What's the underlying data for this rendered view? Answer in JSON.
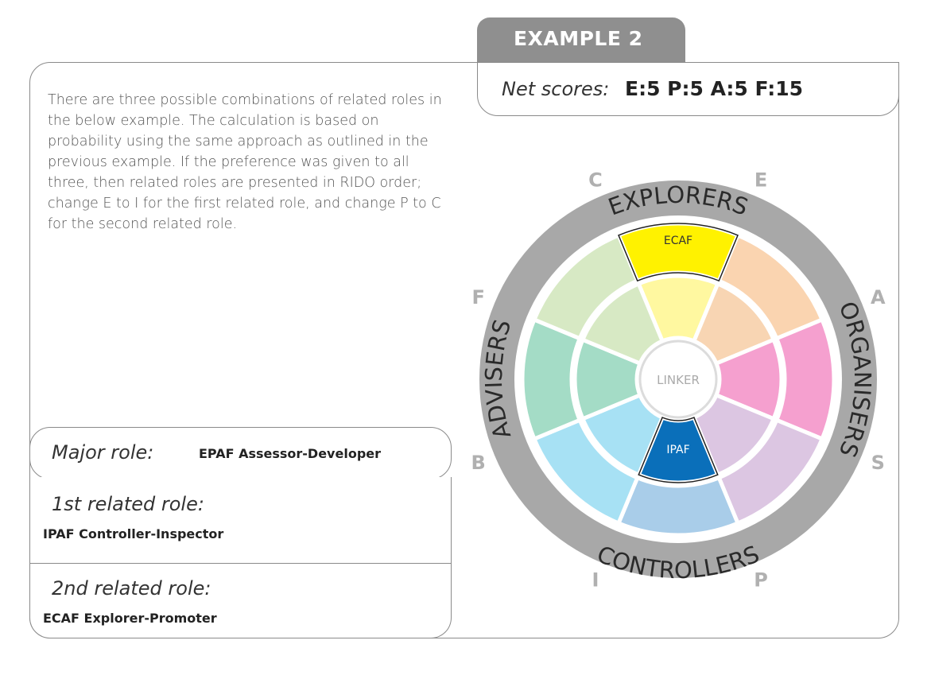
{
  "header": {
    "example_label": "EXAMPLE 2"
  },
  "net_scores": {
    "label": "Net scores:",
    "value": "E:5 P:5 A:5 F:15"
  },
  "description": "There are three possible combinations of related roles in the below example. The calculation is based on probability using the same approach as outlined in the previous example. If the preference was given to all three, then related roles are presented in RIDO order; change E to I for the first related role, and change P to C for the second related role.",
  "roles": {
    "major_label": "Major role:",
    "major_value": "EPAF Assessor-Developer",
    "first_label": "1st related role:",
    "first_value": "IPAF  Controller-Inspector",
    "second_label": "2nd related role:",
    "second_value": "ECAF  Explorer-Promoter"
  },
  "wheel": {
    "center_label": "LINKER",
    "highlight_outer_label": "ECAF",
    "highlight_inner_label": "IPAF",
    "ring_labels": [
      "EXPLORERS",
      "ORGANISERS",
      "CONTROLLERS",
      "ADVISERS"
    ],
    "outer_letters": [
      "C",
      "E",
      "A",
      "S",
      "P",
      "I",
      "B",
      "F"
    ],
    "colors": {
      "ring": "#a8a8a8",
      "outer_segments": [
        "#fff200",
        "#fad4b0",
        "#f5a0cf",
        "#dcc6e2",
        "#a9cde9",
        "#a7e1f4",
        "#a4dcc6",
        "#d7e9c4"
      ],
      "inner_segments": [
        "#fff8a0",
        "#f8d5b3",
        "#f5a0cf",
        "#dcc6e2",
        "#0a6fba",
        "#a7e1f4",
        "#a4dcc6",
        "#d7e9c4"
      ],
      "letters": "#b0b0b0"
    }
  }
}
